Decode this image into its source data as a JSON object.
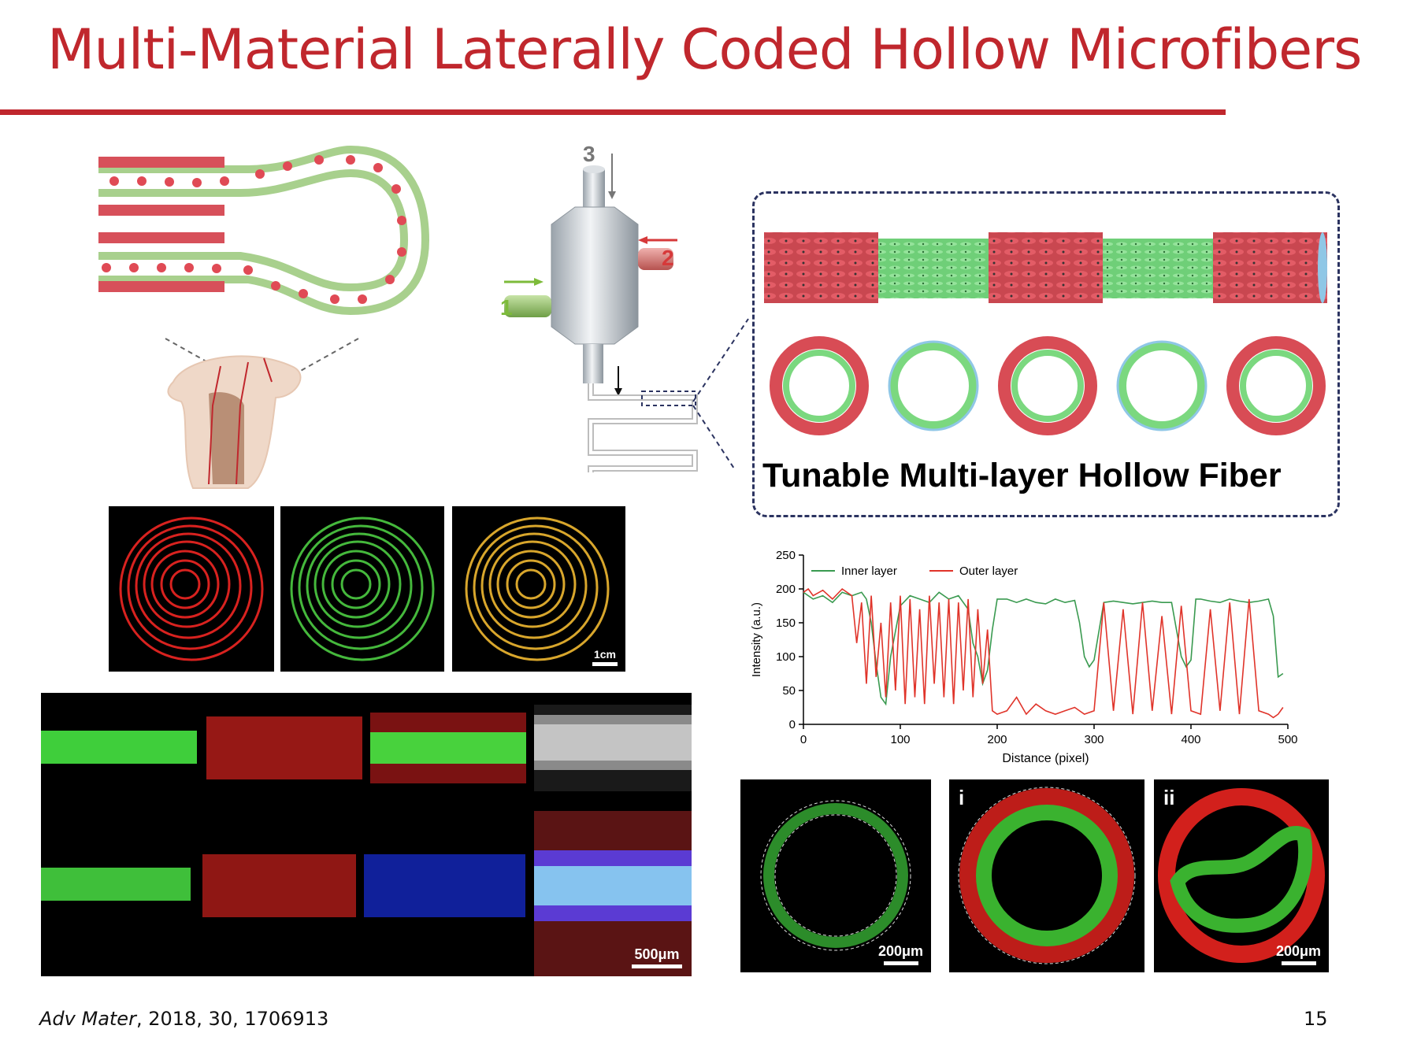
{
  "slide": {
    "title": "Multi-Material Laterally Coded Hollow Microfibers",
    "citation_journal": "Adv Mater",
    "citation_rest": ", 2018, 30, 1706913",
    "page_number": "15"
  },
  "device": {
    "inlet_labels": [
      "1",
      "2",
      "3"
    ],
    "colors": {
      "inlet1": "#7dbb3a",
      "inlet2": "#d6393a",
      "inlet3": "#777777"
    }
  },
  "fiber_panel": {
    "caption": "Tunable Multi-layer Hollow Fiber"
  },
  "spiral_panel": {
    "scale_label": "1cm"
  },
  "strip_panel": {
    "scale_label": "500μm"
  },
  "cross_sections": {
    "labels": [
      "i",
      "ii"
    ],
    "scale_labels": [
      "200μm",
      "200μm"
    ]
  },
  "colors": {
    "accent": "#c0272d",
    "inner": "#3a9a50",
    "outer": "#e0342a"
  },
  "chart_data": {
    "type": "line",
    "title": "",
    "xlabel": "Distance (pixel)",
    "ylabel": "Intensity (a.u.)",
    "xlim": [
      0,
      500
    ],
    "ylim": [
      0,
      250
    ],
    "xticks": [
      0,
      100,
      200,
      300,
      400,
      500
    ],
    "yticks": [
      0,
      50,
      100,
      150,
      200,
      250
    ],
    "legend_position": "top",
    "grid": false,
    "series": [
      {
        "name": "Inner layer",
        "color": "#3a9a50",
        "x": [
          0,
          10,
          20,
          30,
          40,
          50,
          60,
          65,
          70,
          75,
          80,
          85,
          90,
          100,
          110,
          120,
          130,
          140,
          150,
          160,
          170,
          175,
          180,
          185,
          190,
          195,
          200,
          210,
          220,
          230,
          240,
          250,
          260,
          270,
          280,
          285,
          290,
          295,
          300,
          310,
          320,
          330,
          340,
          350,
          360,
          370,
          380,
          385,
          390,
          395,
          400,
          405,
          410,
          420,
          430,
          440,
          450,
          460,
          470,
          480,
          485,
          490,
          495
        ],
        "y": [
          195,
          185,
          190,
          180,
          195,
          190,
          195,
          185,
          150,
          90,
          40,
          30,
          100,
          175,
          190,
          185,
          180,
          195,
          185,
          190,
          170,
          120,
          100,
          60,
          80,
          140,
          185,
          185,
          180,
          185,
          180,
          178,
          185,
          180,
          183,
          150,
          100,
          85,
          95,
          180,
          182,
          180,
          178,
          180,
          182,
          180,
          180,
          140,
          100,
          85,
          95,
          185,
          185,
          182,
          180,
          185,
          182,
          180,
          182,
          185,
          160,
          70,
          75
        ]
      },
      {
        "name": "Outer layer",
        "color": "#e0342a",
        "x": [
          0,
          5,
          10,
          20,
          30,
          40,
          50,
          55,
          60,
          65,
          70,
          75,
          80,
          85,
          90,
          95,
          100,
          105,
          110,
          115,
          120,
          125,
          130,
          135,
          140,
          145,
          150,
          155,
          160,
          165,
          170,
          175,
          180,
          185,
          190,
          195,
          200,
          210,
          220,
          230,
          240,
          250,
          260,
          270,
          280,
          290,
          300,
          310,
          320,
          330,
          340,
          350,
          360,
          370,
          380,
          390,
          400,
          410,
          420,
          430,
          440,
          450,
          460,
          470,
          480,
          485,
          490,
          495
        ],
        "y": [
          195,
          200,
          190,
          198,
          185,
          200,
          190,
          120,
          180,
          60,
          190,
          70,
          150,
          40,
          180,
          50,
          190,
          30,
          185,
          40,
          170,
          30,
          190,
          60,
          180,
          40,
          185,
          30,
          180,
          50,
          185,
          40,
          170,
          60,
          140,
          20,
          15,
          20,
          40,
          15,
          30,
          20,
          15,
          20,
          25,
          15,
          20,
          180,
          20,
          170,
          15,
          180,
          20,
          160,
          15,
          175,
          20,
          15,
          170,
          20,
          180,
          15,
          185,
          20,
          15,
          10,
          15,
          25
        ]
      }
    ]
  }
}
